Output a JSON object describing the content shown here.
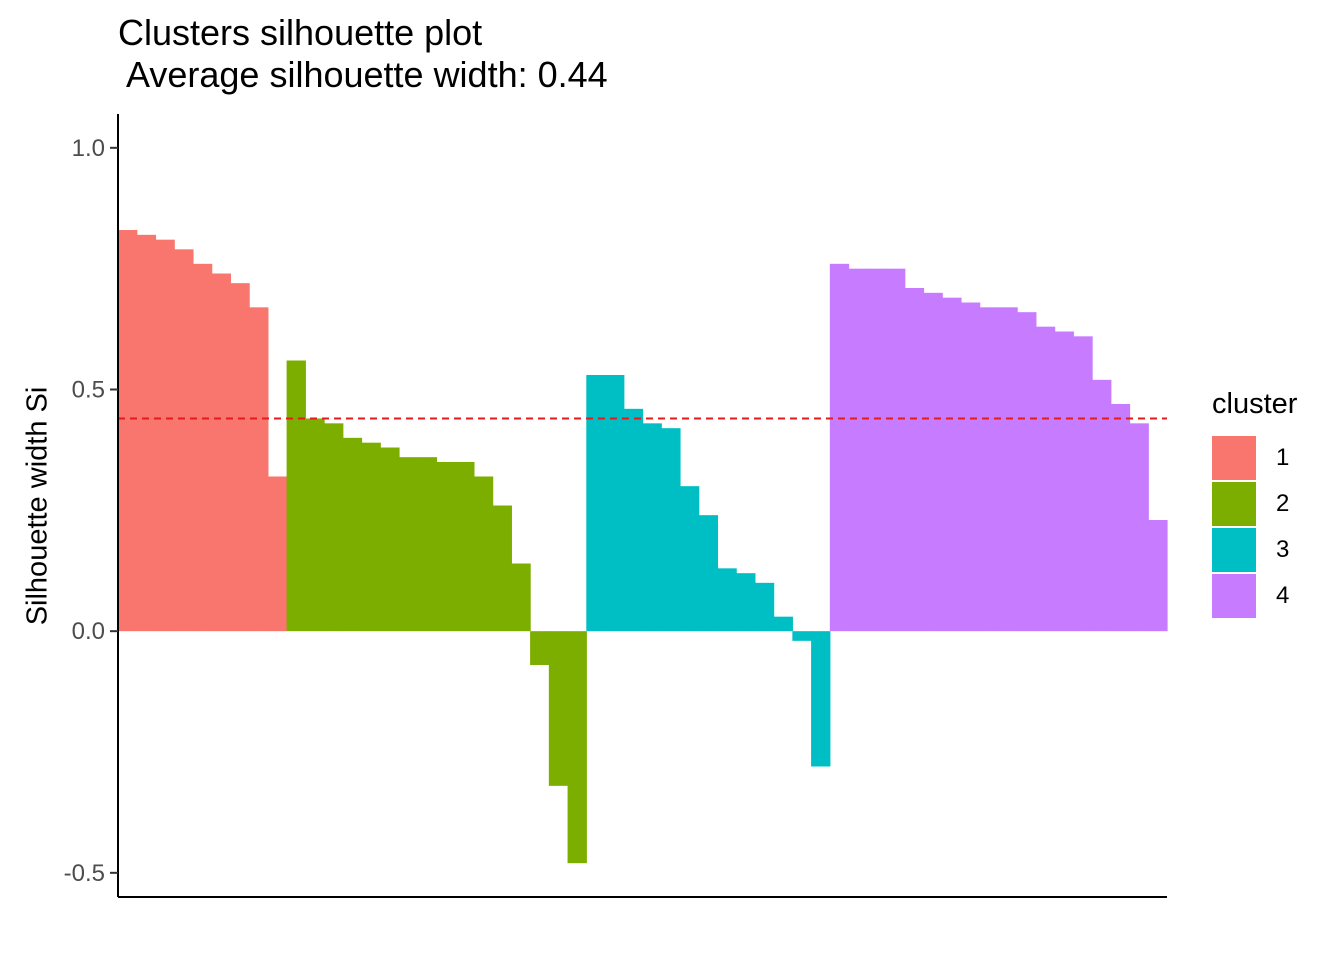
{
  "chart_data": {
    "type": "bar",
    "title": "Clusters silhouette plot",
    "subtitle": " Average silhouette width: 0.44",
    "xlabel": "",
    "ylabel": "Silhouette width Si",
    "ylim": [
      -0.55,
      1.07
    ],
    "yticks": [
      -0.5,
      0.0,
      0.5,
      1.0
    ],
    "ytick_labels": [
      "-0.5",
      "0.0",
      "0.5",
      "1.0"
    ],
    "reference_line": {
      "y": 0.44,
      "style": "dashed",
      "color": "#E41A1C"
    },
    "grid": false,
    "legend": {
      "title": "cluster",
      "position": "right"
    },
    "series": [
      {
        "name": "1",
        "color": "#F8766D",
        "values": [
          0.83,
          0.82,
          0.81,
          0.79,
          0.76,
          0.74,
          0.72,
          0.67,
          0.32
        ]
      },
      {
        "name": "2",
        "color": "#7CAE00",
        "values": [
          0.56,
          0.44,
          0.43,
          0.4,
          0.39,
          0.38,
          0.36,
          0.36,
          0.35,
          0.35,
          0.32,
          0.26,
          0.14,
          -0.07,
          -0.32,
          -0.48
        ]
      },
      {
        "name": "3",
        "color": "#00BFC4",
        "values": [
          0.53,
          0.53,
          0.46,
          0.43,
          0.42,
          0.3,
          0.24,
          0.13,
          0.12,
          0.1,
          0.03,
          -0.02,
          -0.28
        ]
      },
      {
        "name": "4",
        "color": "#C77CFF",
        "values": [
          0.76,
          0.75,
          0.75,
          0.75,
          0.71,
          0.7,
          0.69,
          0.68,
          0.67,
          0.67,
          0.66,
          0.63,
          0.62,
          0.61,
          0.52,
          0.47,
          0.43,
          0.23
        ]
      }
    ]
  }
}
